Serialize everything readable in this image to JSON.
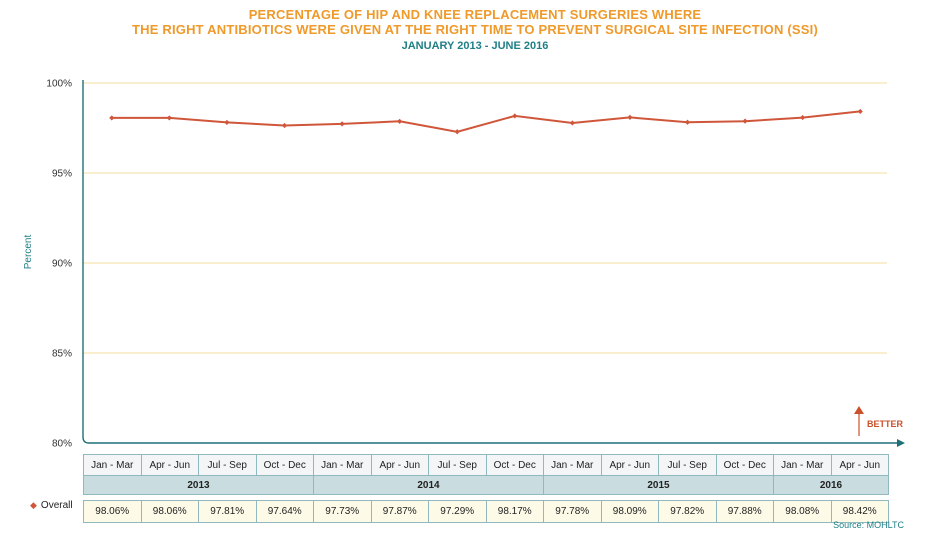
{
  "header": {
    "title_line1": "PERCENTAGE OF HIP AND KNEE REPLACEMENT SURGERIES WHERE",
    "title_line2": "THE RIGHT ANTIBIOTICS WERE GIVEN AT THE RIGHT TIME TO PREVENT SURGICAL SITE INFECTION (SSI)",
    "subtitle": "JANUARY 2013 - JUNE 2016"
  },
  "chart_data": {
    "type": "line",
    "title": "PERCENTAGE OF HIP AND KNEE REPLACEMENT SURGERIES WHERE THE RIGHT ANTIBIOTICS WERE GIVEN AT THE RIGHT TIME TO PREVENT SURGICAL SITE INFECTION (SSI)",
    "subtitle": "JANUARY 2013 - JUNE 2016",
    "xlabel": "",
    "ylabel": "Percent",
    "ylim": [
      80,
      100
    ],
    "yticks": [
      "80%",
      "85%",
      "90%",
      "95%",
      "100%"
    ],
    "grid": true,
    "categories": [
      "Jan - Mar",
      "Apr - Jun",
      "Jul - Sep",
      "Oct - Dec",
      "Jan - Mar",
      "Apr - Jun",
      "Jul - Sep",
      "Oct - Dec",
      "Jan - Mar",
      "Apr - Jun",
      "Jul - Sep",
      "Oct - Dec",
      "Jan - Mar",
      "Apr - Jun"
    ],
    "year_groups": [
      {
        "year": "2013",
        "quarters": 4
      },
      {
        "year": "2014",
        "quarters": 4
      },
      {
        "year": "2015",
        "quarters": 4
      },
      {
        "year": "2016",
        "quarters": 2
      }
    ],
    "series": [
      {
        "name": "Overall",
        "color": "#d0563a",
        "values": [
          98.06,
          98.06,
          97.81,
          97.64,
          97.73,
          97.87,
          97.29,
          98.17,
          97.78,
          98.09,
          97.82,
          97.88,
          98.08,
          98.42
        ],
        "labels": [
          "98.06%",
          "98.06%",
          "97.81%",
          "97.64%",
          "97.73%",
          "97.87%",
          "97.29%",
          "98.17%",
          "97.78%",
          "98.09%",
          "97.82%",
          "97.88%",
          "98.08%",
          "98.42%"
        ]
      }
    ],
    "direction_label": "BETTER",
    "source": "Source: MOHLTC"
  }
}
